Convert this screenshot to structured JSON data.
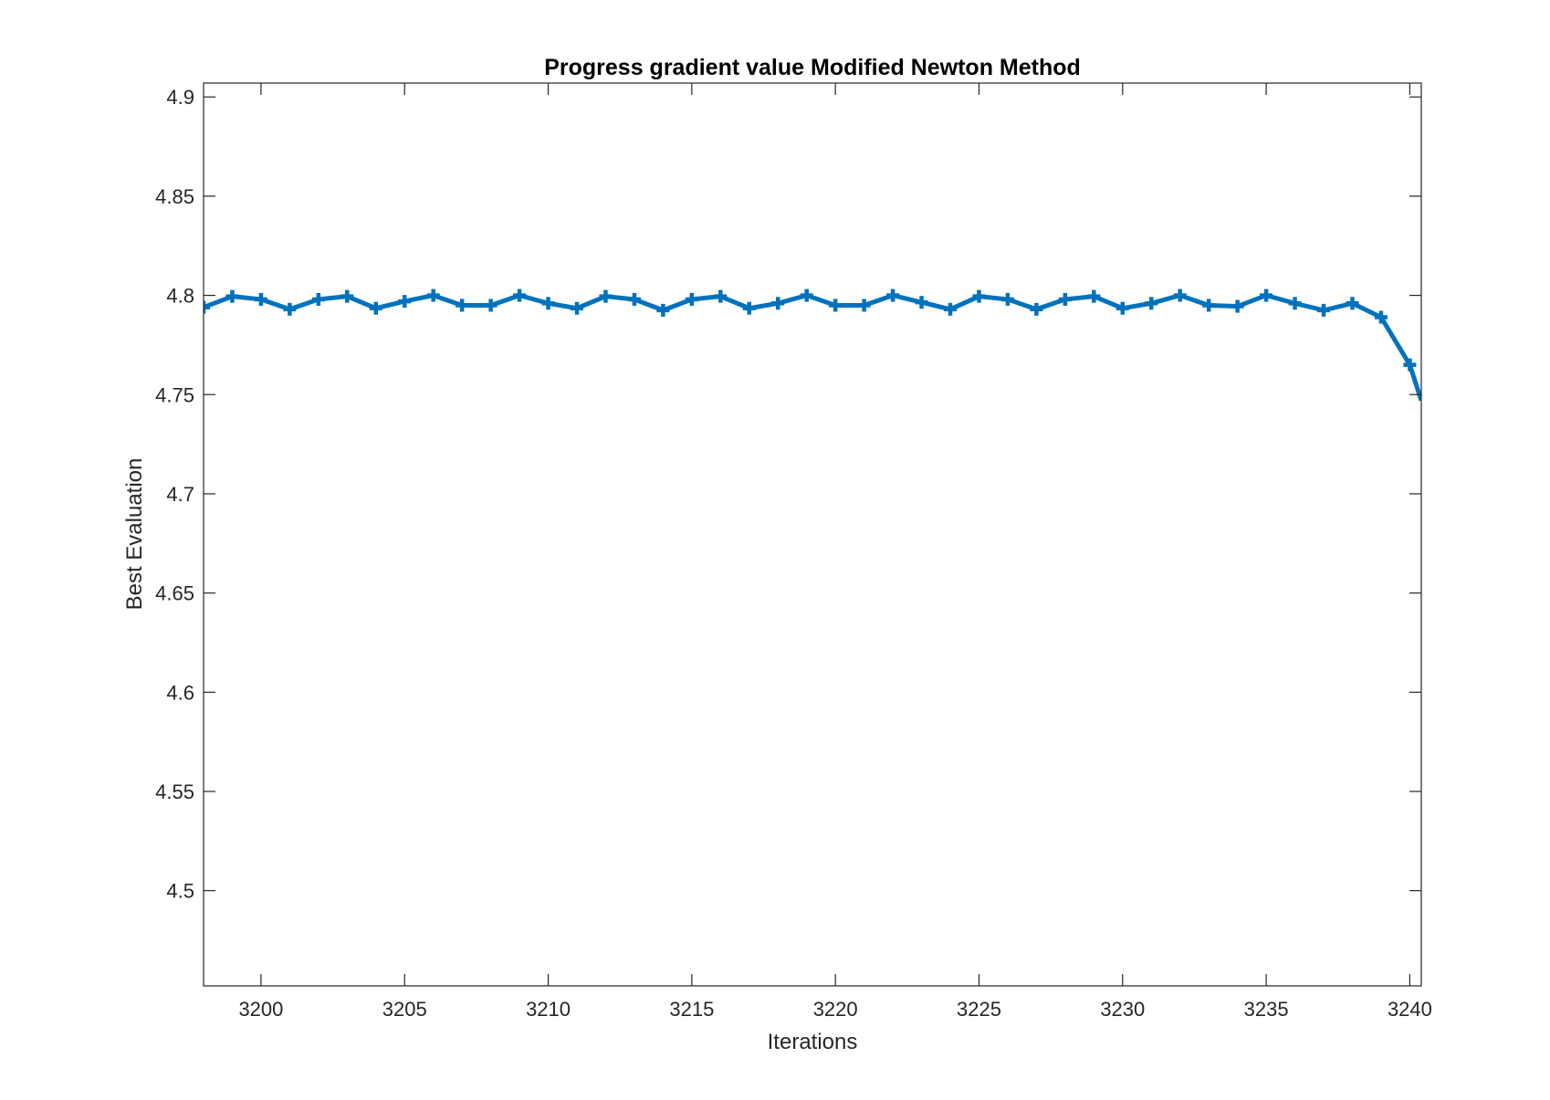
{
  "chart_data": {
    "type": "line",
    "title": "Progress gradient value Modified Newton Method",
    "xlabel": "Iterations",
    "ylabel": "Best Evaluation",
    "xlim": [
      3198,
      3240.4
    ],
    "ylim": [
      4.452,
      4.907
    ],
    "xticks": [
      3200,
      3205,
      3210,
      3215,
      3220,
      3225,
      3230,
      3235,
      3240
    ],
    "yticks": [
      4.5,
      4.55,
      4.6,
      4.65,
      4.7,
      4.75,
      4.8,
      4.85,
      4.9
    ],
    "xtick_labels": [
      "3200",
      "3205",
      "3210",
      "3215",
      "3220",
      "3225",
      "3230",
      "3235",
      "3240"
    ],
    "ytick_labels": [
      "4.5",
      "4.55",
      "4.6",
      "4.65",
      "4.7",
      "4.75",
      "4.8",
      "4.85",
      "4.9"
    ],
    "grid": false,
    "line_color": "#0072BD",
    "marker": "plus",
    "series": [
      {
        "x": [
          3198,
          3199,
          3200,
          3201,
          3202,
          3203,
          3204,
          3205,
          3206,
          3207,
          3208,
          3209,
          3210,
          3211,
          3212,
          3213,
          3214,
          3215,
          3216,
          3217,
          3218,
          3219,
          3220,
          3221,
          3222,
          3223,
          3224,
          3225,
          3226,
          3227,
          3228,
          3229,
          3230,
          3231,
          3232,
          3233,
          3234,
          3235,
          3236,
          3237,
          3238,
          3239,
          3240,
          3240.4
        ],
        "values": [
          4.794,
          4.7995,
          4.798,
          4.793,
          4.798,
          4.7995,
          4.7935,
          4.797,
          4.8,
          4.795,
          4.795,
          4.8,
          4.796,
          4.7935,
          4.7995,
          4.798,
          4.7925,
          4.798,
          4.7995,
          4.7935,
          4.796,
          4.8,
          4.795,
          4.795,
          4.8,
          4.7965,
          4.793,
          4.7995,
          4.798,
          4.793,
          4.798,
          4.7995,
          4.7935,
          4.796,
          4.8,
          4.795,
          4.7945,
          4.8,
          4.796,
          4.7925,
          4.796,
          4.789,
          4.765,
          4.747
        ]
      }
    ]
  }
}
